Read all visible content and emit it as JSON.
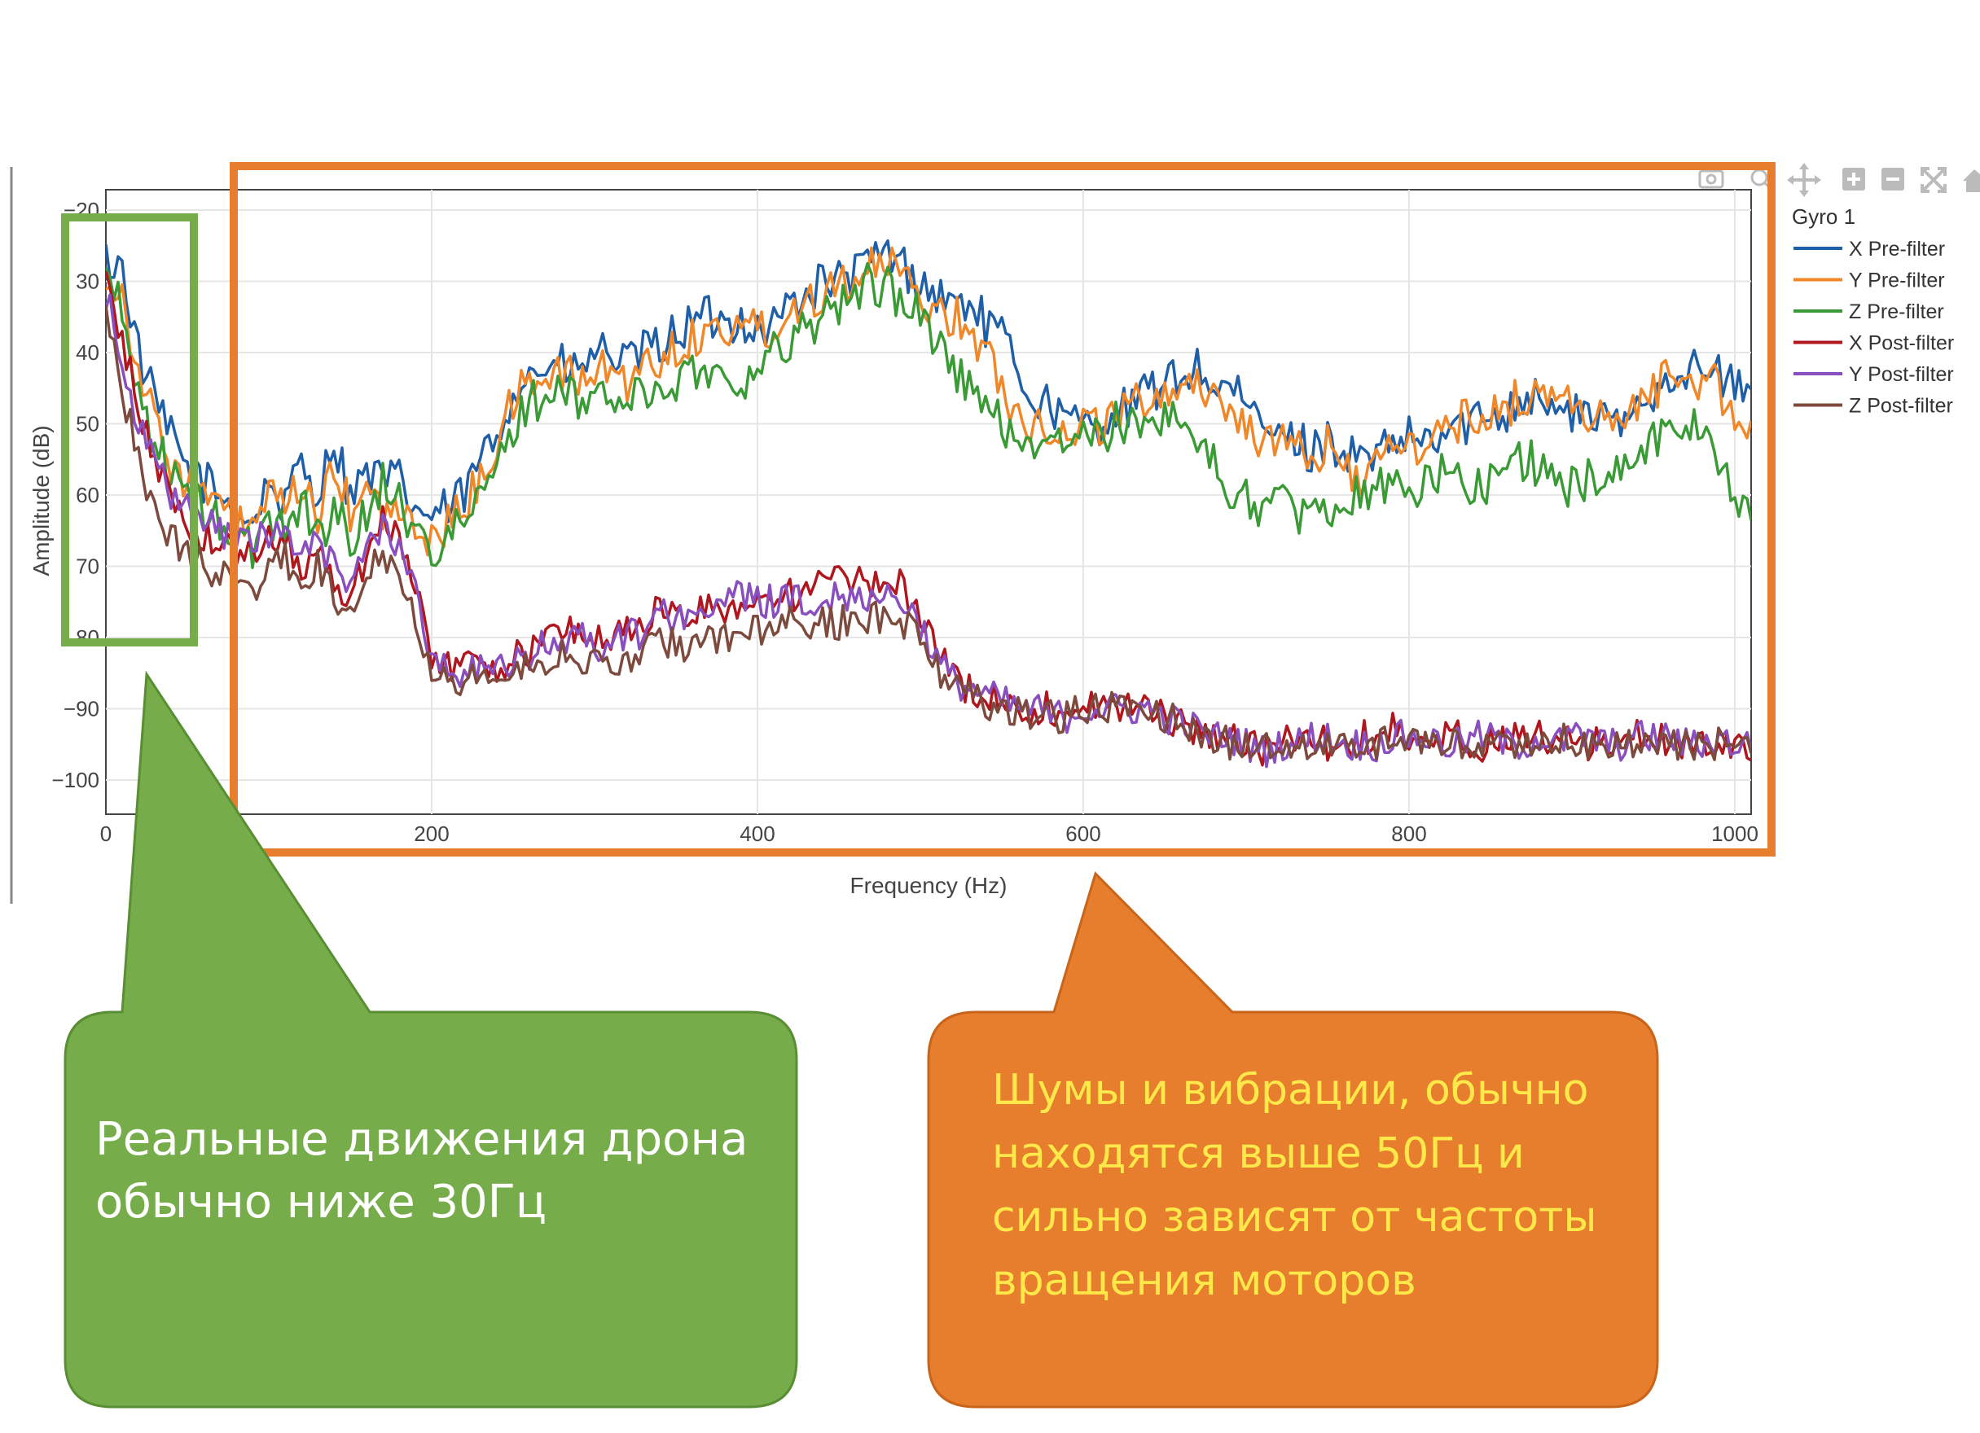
{
  "chart_data": {
    "type": "line",
    "title": "",
    "xlabel": "Frequency (Hz)",
    "ylabel": "Amplitude (dB)",
    "xlim": [
      0,
      1010
    ],
    "ylim": [
      -105,
      -18
    ],
    "x_ticks": [
      0,
      200,
      400,
      600,
      800,
      1000
    ],
    "x_tick_labels": [
      "0",
      "200",
      "400",
      "600",
      "800",
      "1000"
    ],
    "y_ticks": [
      -20,
      -30,
      -40,
      -50,
      -60,
      -70,
      -80,
      -90,
      -100
    ],
    "y_tick_labels": [
      "−20",
      "30",
      "40",
      "50",
      "60",
      "70",
      "80",
      "−90",
      "−100"
    ],
    "grid": true,
    "legend_title": "Gyro 1",
    "legend_position": "top-right",
    "x_step_hz": 10,
    "series": [
      {
        "name": "X Pre-filter",
        "color": "#1f5fa8",
        "values": [
          -27,
          -28,
          -40,
          -47,
          -52,
          -56,
          -58,
          -60,
          -62,
          -64,
          -58,
          -62,
          -55,
          -60,
          -52,
          -60,
          -57,
          -58,
          -58,
          -62,
          -63,
          -62,
          -60,
          -55,
          -52,
          -45,
          -43,
          -42,
          -42,
          -43,
          -40,
          -40,
          -42,
          -40,
          -39,
          -37,
          -36,
          -35,
          -36,
          -35,
          -37,
          -36,
          -33,
          -32,
          -30,
          -30,
          -29,
          -27,
          -26,
          -28,
          -30,
          -32,
          -33,
          -33,
          -36,
          -38,
          -42,
          -47,
          -47,
          -50,
          -50,
          -50,
          -48,
          -48,
          -45,
          -45,
          -43,
          -42,
          -45,
          -45,
          -48,
          -50,
          -52,
          -52,
          -54,
          -52,
          -54,
          -55,
          -55,
          -53,
          -52,
          -53,
          -52,
          -50,
          -50,
          -48,
          -48,
          -46,
          -46,
          -48,
          -49,
          -48,
          -50,
          -50,
          -48,
          -45,
          -43,
          -42,
          -43,
          -43,
          -45,
          -45,
          -45,
          -47,
          -47,
          -48,
          -49,
          -49,
          -50,
          -52,
          -53,
          -55,
          -57,
          -57,
          -59,
          -60,
          -60,
          -60,
          -62,
          -61,
          -62,
          -60,
          -63,
          -62,
          -64,
          -66,
          -65,
          -67,
          -66,
          -68,
          -66,
          -67,
          -69,
          -68,
          -68,
          -70,
          -69,
          -70,
          -69,
          -70,
          -70
        ]
      },
      {
        "name": "Y Pre-filter",
        "color": "#f0882a",
        "values": [
          -29,
          -32,
          -42,
          -50,
          -55,
          -58,
          -60,
          -62,
          -63,
          -65,
          -60,
          -63,
          -58,
          -63,
          -57,
          -62,
          -60,
          -62,
          -63,
          -65,
          -66,
          -64,
          -62,
          -57,
          -53,
          -47,
          -44,
          -43,
          -43,
          -44,
          -43,
          -42,
          -44,
          -42,
          -41,
          -39,
          -38,
          -37,
          -37,
          -35,
          -37,
          -36,
          -34,
          -33,
          -31,
          -30,
          -29,
          -28,
          -28,
          -30,
          -32,
          -34,
          -35,
          -36,
          -40,
          -45,
          -48,
          -50,
          -50,
          -52,
          -50,
          -50,
          -48,
          -48,
          -46,
          -45,
          -45,
          -44,
          -46,
          -48,
          -50,
          -52,
          -53,
          -54,
          -55,
          -53,
          -56,
          -57,
          -56,
          -54,
          -53,
          -53,
          -51,
          -50,
          -49,
          -48,
          -48,
          -46,
          -46,
          -46,
          -47,
          -48,
          -50,
          -50,
          -48,
          -45,
          -43,
          -42,
          -44,
          -45,
          -48,
          -52,
          -55,
          -58,
          -60,
          -62,
          -64,
          -65,
          -66,
          -66,
          -65,
          -67,
          -67,
          -66,
          -66,
          -66,
          -68,
          -67,
          -69,
          -70,
          -70,
          -69,
          -70,
          -72,
          -73,
          -72,
          -71,
          -70,
          -73,
          -72,
          -72,
          -72,
          -70,
          -67,
          -66,
          -66,
          -68,
          -67,
          -66,
          -65,
          -68
        ]
      },
      {
        "name": "Z Pre-filter",
        "color": "#3a9a35",
        "values": [
          -28,
          -35,
          -45,
          -53,
          -57,
          -60,
          -62,
          -64,
          -66,
          -68,
          -63,
          -65,
          -60,
          -66,
          -62,
          -66,
          -63,
          -58,
          -60,
          -66,
          -67,
          -66,
          -64,
          -60,
          -57,
          -50,
          -47,
          -46,
          -46,
          -47,
          -46,
          -46,
          -47,
          -46,
          -45,
          -44,
          -43,
          -42,
          -44,
          -43,
          -44,
          -40,
          -38,
          -36,
          -35,
          -33,
          -32,
          -30,
          -31,
          -33,
          -35,
          -38,
          -42,
          -45,
          -48,
          -50,
          -52,
          -52,
          -54,
          -52,
          -52,
          -52,
          -50,
          -51,
          -50,
          -48,
          -49,
          -52,
          -56,
          -60,
          -60,
          -62,
          -60,
          -62,
          -64,
          -62,
          -60,
          -60,
          -58,
          -59,
          -60,
          -58,
          -57,
          -58,
          -59,
          -58,
          -55,
          -55,
          -56,
          -58,
          -59,
          -58,
          -57,
          -56,
          -55,
          -52,
          -50,
          -50,
          -52,
          -54,
          -60,
          -64,
          -67,
          -67,
          -68,
          -70,
          -72,
          -73,
          -74,
          -74,
          -75,
          -75,
          -76,
          -74,
          -74,
          -72,
          -72,
          -74,
          -75,
          -75,
          -76,
          -74,
          -74,
          -73,
          -74,
          -76,
          -76,
          -76,
          -77,
          -78,
          -76,
          -75,
          -75,
          -76,
          -76,
          -74,
          -75,
          -73,
          -72,
          -72,
          -71
        ]
      },
      {
        "name": "X Post-filter",
        "color": "#b0161d",
        "values": [
          -30,
          -38,
          -48,
          -55,
          -60,
          -64,
          -66,
          -67,
          -68,
          -69,
          -66,
          -66,
          -70,
          -68,
          -72,
          -75,
          -68,
          -62,
          -66,
          -74,
          -82,
          -84,
          -84,
          -83,
          -84,
          -83,
          -82,
          -80,
          -79,
          -79,
          -80,
          -80,
          -79,
          -78,
          -76,
          -77,
          -77,
          -76,
          -76,
          -75,
          -75,
          -74,
          -74,
          -74,
          -72,
          -72,
          -72,
          -73,
          -72,
          -73,
          -76,
          -82,
          -86,
          -87,
          -88,
          -89,
          -90,
          -90,
          -90,
          -90,
          -90,
          -89,
          -90,
          -90,
          -90,
          -91,
          -92,
          -93,
          -94,
          -94,
          -95,
          -96,
          -95,
          -94,
          -94,
          -95,
          -96,
          -94,
          -94,
          -93,
          -95,
          -95,
          -94,
          -94,
          -95,
          -95,
          -94,
          -94,
          -94,
          -94,
          -95,
          -95,
          -95,
          -94,
          -94,
          -94,
          -95,
          -95,
          -94,
          -95,
          -95,
          -95,
          -94,
          -94,
          -94,
          -95,
          -95,
          -94,
          -95,
          -95,
          -95,
          -94,
          -94,
          -94,
          -95,
          -96,
          -95,
          -94,
          -94,
          -95,
          -95,
          -95,
          -95,
          -94,
          -94,
          -95,
          -96,
          -95,
          -94,
          -95,
          -95,
          -95,
          -94,
          -94,
          -95,
          -95,
          -95,
          -95,
          -94,
          -95,
          -95
        ]
      },
      {
        "name": "Y Post-filter",
        "color": "#8a4fbf",
        "values": [
          -32,
          -40,
          -50,
          -56,
          -60,
          -62,
          -64,
          -65,
          -66,
          -67,
          -65,
          -66,
          -68,
          -67,
          -70,
          -73,
          -67,
          -64,
          -67,
          -74,
          -82,
          -84,
          -85,
          -84,
          -85,
          -84,
          -83,
          -81,
          -80,
          -80,
          -81,
          -81,
          -80,
          -79,
          -77,
          -77,
          -76,
          -76,
          -75,
          -74,
          -75,
          -75,
          -75,
          -75,
          -74,
          -74,
          -74,
          -74,
          -74,
          -75,
          -78,
          -83,
          -86,
          -87,
          -88,
          -89,
          -90,
          -90,
          -91,
          -91,
          -90,
          -90,
          -90,
          -90,
          -90,
          -91,
          -92,
          -93,
          -94,
          -94,
          -95,
          -96,
          -95,
          -95,
          -94,
          -94,
          -95,
          -95,
          -95,
          -94,
          -94,
          -94,
          -95,
          -95,
          -94,
          -94,
          -95,
          -95,
          -94,
          -95,
          -94,
          -94,
          -95,
          -95,
          -94,
          -94,
          -94,
          -95,
          -95,
          -94,
          -95,
          -95,
          -95,
          -95,
          -94,
          -94,
          -95,
          -95,
          -95,
          -94,
          -94,
          -95,
          -95,
          -95,
          -94,
          -94,
          -95,
          -95,
          -94,
          -95,
          -95,
          -95,
          -94,
          -94,
          -95,
          -95,
          -95,
          -94,
          -94,
          -95,
          -95,
          -95,
          -94,
          -94,
          -95,
          -95,
          -95,
          -95,
          -94,
          -95,
          -95
        ]
      },
      {
        "name": "Z Post-filter",
        "color": "#7d4a3e",
        "values": [
          -33,
          -45,
          -55,
          -62,
          -66,
          -68,
          -70,
          -71,
          -72,
          -74,
          -70,
          -69,
          -72,
          -70,
          -74,
          -77,
          -70,
          -68,
          -70,
          -77,
          -84,
          -86,
          -86,
          -85,
          -86,
          -85,
          -84,
          -83,
          -82,
          -83,
          -84,
          -84,
          -83,
          -82,
          -81,
          -81,
          -81,
          -80,
          -80,
          -80,
          -79,
          -79,
          -78,
          -79,
          -78,
          -78,
          -77,
          -77,
          -77,
          -78,
          -80,
          -84,
          -87,
          -88,
          -89,
          -90,
          -90,
          -91,
          -91,
          -91,
          -90,
          -90,
          -90,
          -90,
          -90,
          -91,
          -92,
          -93,
          -94,
          -95,
          -95,
          -96,
          -95,
          -95,
          -95,
          -95,
          -95,
          -95,
          -95,
          -94,
          -94,
          -95,
          -95,
          -95,
          -95,
          -95,
          -95,
          -95,
          -95,
          -95,
          -94,
          -95,
          -95,
          -95,
          -95,
          -95,
          -95,
          -95,
          -95,
          -95,
          -95,
          -95,
          -95,
          -95,
          -95,
          -95,
          -95,
          -95,
          -95,
          -95,
          -95,
          -95,
          -95,
          -95,
          -95,
          -95,
          -95,
          -95,
          -95,
          -95,
          -95,
          -95,
          -95,
          -95,
          -95,
          -95,
          -95,
          -95,
          -95,
          -95,
          -95,
          -95,
          -95,
          -95,
          -95,
          -95,
          -95,
          -95,
          -95,
          -95,
          -95
        ]
      }
    ]
  },
  "annotations": {
    "green_bubble_text_line1": "Реальные движения дрона",
    "green_bubble_text_line2": "обычно ниже 30Гц",
    "orange_bubble_text_line1": "Шумы и вибрации, обычно",
    "orange_bubble_text_line2": "находятся выше 50Гц и",
    "orange_bubble_text_line3": "сильно зависят от частоты",
    "orange_bubble_text_line4": "вращения моторов",
    "green_color": "#76ad4a",
    "orange_color": "#e67e2d",
    "orange_text_color": "#ffe94a",
    "green_text_color": "#ffffff"
  },
  "toolbar_icons": [
    "camera-icon",
    "zoom-icon",
    "pan-icon",
    "zoom-in-icon",
    "zoom-out-icon",
    "autoscale-icon",
    "home-icon"
  ]
}
